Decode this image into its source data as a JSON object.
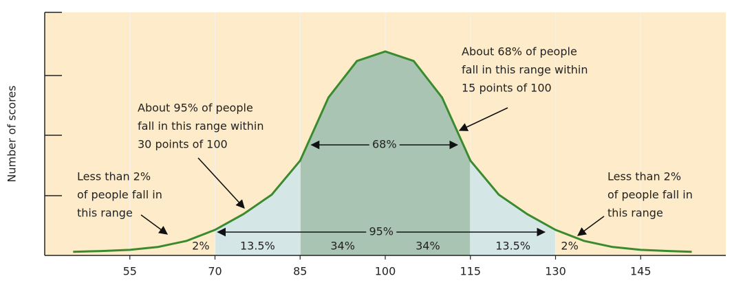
{
  "chart_data": {
    "type": "area",
    "y_label": "Number of scores",
    "xlim": [
      40,
      160
    ],
    "ylim": [
      0,
      100
    ],
    "xticks": [
      55,
      70,
      85,
      100,
      115,
      130,
      145
    ],
    "grid": true,
    "color": "#3a8a2e",
    "x": [
      45,
      50,
      55,
      60,
      65,
      70,
      75,
      80,
      85,
      90,
      95,
      100,
      105,
      110,
      115,
      120,
      125,
      130,
      135,
      140,
      145,
      150,
      154
    ],
    "values": [
      1.5,
      1.8,
      2.3,
      3.5,
      6,
      10.5,
      17,
      25,
      39,
      65,
      80,
      83.9,
      80,
      65,
      39,
      25,
      17,
      10.5,
      6,
      3.5,
      2.3,
      1.8,
      1.5
    ],
    "bands": [
      {
        "from": 70,
        "to": 130,
        "color": "#d4e6e6"
      },
      {
        "from": 85,
        "to": 115,
        "color": "#a9c4b2"
      }
    ],
    "ranges": [
      {
        "from": 87,
        "to": 112.7,
        "label": "68%"
      },
      {
        "from": 70.5,
        "to": 128.1,
        "label": "95%"
      }
    ],
    "segments": [
      {
        "from": 65,
        "to": 70,
        "label": "2%"
      },
      {
        "from": 70,
        "to": 85,
        "label": "13.5%"
      },
      {
        "from": 85,
        "to": 100,
        "label": "34%"
      },
      {
        "from": 100,
        "to": 115,
        "label": "34%"
      },
      {
        "from": 115,
        "to": 130,
        "label": "13.5%"
      },
      {
        "from": 130,
        "to": 135,
        "label": "2%"
      }
    ],
    "annotations": [
      {
        "lines": [
          "About 68% of people",
          "fall in this range within",
          "15 points of 100"
        ]
      },
      {
        "lines": [
          "About 95% of people",
          "fall in this range within",
          "30 points of 100"
        ]
      },
      {
        "lines": [
          "Less than 2%",
          "of people fall in",
          "this range"
        ]
      },
      {
        "lines": [
          "Less than 2%",
          "of people fall in",
          "this range"
        ]
      }
    ]
  }
}
